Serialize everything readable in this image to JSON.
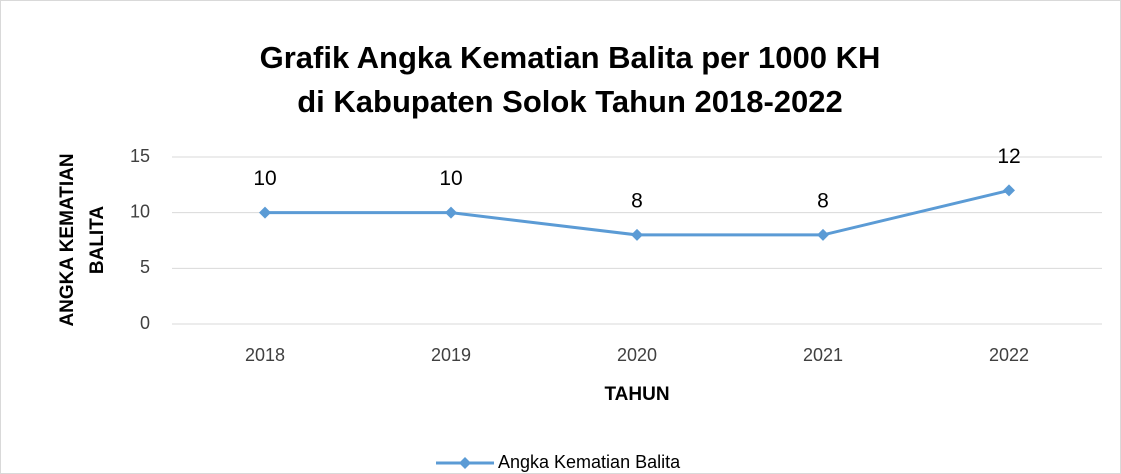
{
  "chart_data": {
    "type": "line",
    "title": [
      "Grafik Angka Kematian Balita per 1000 KH",
      "di Kabupaten Solok Tahun 2018-2022"
    ],
    "y_label": [
      "ANGKA KEMATIAN",
      "BALITA"
    ],
    "x_label": "TAHUN",
    "categories": [
      "2018",
      "2019",
      "2020",
      "2021",
      "2022"
    ],
    "series": [
      {
        "name": "Angka Kematian Balita",
        "color": "#5b9bd5",
        "values": [
          10,
          10,
          8,
          8,
          12
        ]
      }
    ],
    "ylim": [
      0,
      15
    ],
    "yticks": [
      0,
      5,
      10,
      15
    ],
    "grid": true,
    "legend": "bottom"
  }
}
